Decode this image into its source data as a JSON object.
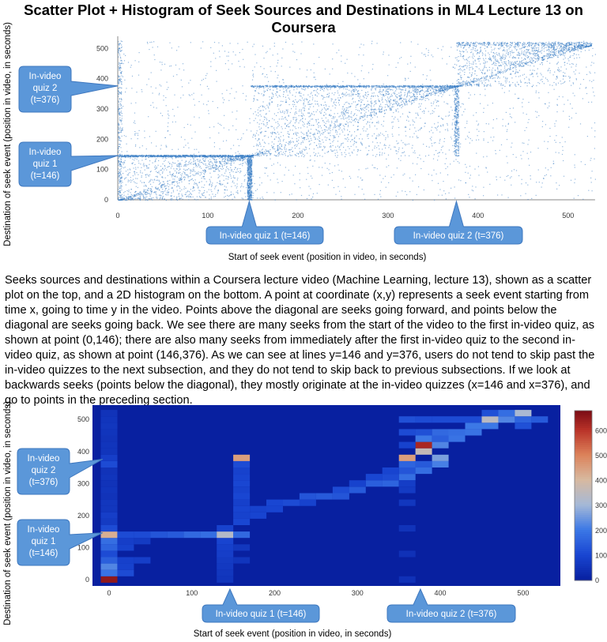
{
  "title": "Scatter Plot + Histogram of Seek Sources and Destinations in ML4 Lecture 13 on Coursera",
  "caption": "Seeks sources and destinations within a Coursera lecture video (Machine Learning, lecture 13), shown as a scatter plot on the top, and a 2D histogram on the bottom. A point at coordinate (x,y) represents a seek event starting from time x, going to time y in the video. Points above the diagonal are seeks going forward, and points below the diagonal are seeks going back. We see there are many seeks from the start of the video to the first in-video quiz, as shown at point (0,146); there are also many seeks from immediately after the first in-video quiz to the second in-video quiz, as shown at point (146,376). As we can see at lines y=146 and y=376, users do not tend to skip past the in-video quizzes to the next subsection, and they do not tend to skip back to previous subsections. If we look at backwards seeks (points below the diagonal), they mostly originate at the in-video quizzes (x=146 and x=376), and go to points in the preceding section.",
  "callouts": {
    "quiz1_left": [
      "In-video",
      "quiz 1",
      "(t=146)"
    ],
    "quiz2_left": [
      "In-video",
      "quiz 2",
      "(t=376)"
    ],
    "quiz1_bottom": "In-video quiz 1 (t=146)",
    "quiz2_bottom": "In-video quiz 2 (t=376)",
    "color": "#5b97d9"
  },
  "chart_data": [
    {
      "type": "scatter",
      "xlabel": "Start of seek event (position in video, in seconds)",
      "ylabel": "Destination of seek event (position in video, in seconds)",
      "xlim": [
        0,
        545
      ],
      "ylim": [
        0,
        545
      ],
      "xticks": [
        0,
        100,
        200,
        300,
        400,
        500
      ],
      "yticks": [
        0,
        100,
        200,
        300,
        400,
        500
      ],
      "point_color": "#3b7dc4",
      "reference_lines": {
        "quiz1": 146,
        "quiz2": 376
      }
    },
    {
      "type": "heatmap",
      "xlabel": "Start of seek event (position in video, in seconds)",
      "ylabel": "Destination of seek event (position in video, in seconds)",
      "xlim": [
        -20,
        545
      ],
      "ylim": [
        -20,
        545
      ],
      "xticks": [
        0,
        100,
        200,
        300,
        400,
        500
      ],
      "yticks": [
        0,
        100,
        200,
        300,
        400,
        500
      ],
      "bin_size": 20,
      "colorbar": {
        "min": 0,
        "max": 680,
        "ticks": [
          0,
          100,
          200,
          300,
          400,
          500,
          600
        ]
      },
      "cells": [
        [
          0,
          0,
          650
        ],
        [
          0,
          20,
          190
        ],
        [
          0,
          40,
          220
        ],
        [
          0,
          60,
          150
        ],
        [
          0,
          80,
          110
        ],
        [
          0,
          100,
          160
        ],
        [
          0,
          120,
          180
        ],
        [
          0,
          140,
          420
        ],
        [
          0,
          160,
          110
        ],
        [
          0,
          180,
          70
        ],
        [
          0,
          200,
          80
        ],
        [
          0,
          220,
          60
        ],
        [
          0,
          240,
          60
        ],
        [
          0,
          260,
          50
        ],
        [
          0,
          280,
          55
        ],
        [
          0,
          300,
          50
        ],
        [
          0,
          320,
          55
        ],
        [
          0,
          340,
          50
        ],
        [
          0,
          360,
          110
        ],
        [
          0,
          380,
          80
        ],
        [
          0,
          400,
          55
        ],
        [
          0,
          420,
          55
        ],
        [
          0,
          440,
          50
        ],
        [
          0,
          460,
          55
        ],
        [
          0,
          480,
          60
        ],
        [
          0,
          500,
          55
        ],
        [
          0,
          520,
          50
        ],
        [
          20,
          20,
          110
        ],
        [
          20,
          40,
          90
        ],
        [
          20,
          60,
          85
        ],
        [
          20,
          100,
          90
        ],
        [
          20,
          120,
          80
        ],
        [
          20,
          140,
          110
        ],
        [
          40,
          60,
          80
        ],
        [
          40,
          120,
          70
        ],
        [
          40,
          140,
          110
        ],
        [
          60,
          140,
          130
        ],
        [
          80,
          140,
          140
        ],
        [
          100,
          140,
          170
        ],
        [
          120,
          140,
          180
        ],
        [
          140,
          0,
          55
        ],
        [
          140,
          20,
          60
        ],
        [
          140,
          40,
          65
        ],
        [
          140,
          60,
          70
        ],
        [
          140,
          80,
          80
        ],
        [
          140,
          100,
          85
        ],
        [
          140,
          120,
          95
        ],
        [
          140,
          140,
          330
        ],
        [
          140,
          160,
          90
        ],
        [
          160,
          60,
          55
        ],
        [
          160,
          100,
          60
        ],
        [
          160,
          140,
          170
        ],
        [
          160,
          180,
          100
        ],
        [
          160,
          200,
          90
        ],
        [
          160,
          220,
          95
        ],
        [
          160,
          240,
          85
        ],
        [
          160,
          260,
          100
        ],
        [
          160,
          280,
          90
        ],
        [
          160,
          300,
          100
        ],
        [
          160,
          320,
          95
        ],
        [
          160,
          340,
          90
        ],
        [
          160,
          360,
          110
        ],
        [
          160,
          380,
          450
        ],
        [
          180,
          200,
          95
        ],
        [
          180,
          220,
          90
        ],
        [
          200,
          220,
          95
        ],
        [
          200,
          240,
          100
        ],
        [
          220,
          240,
          110
        ],
        [
          240,
          260,
          130
        ],
        [
          240,
          240,
          90
        ],
        [
          260,
          260,
          140
        ],
        [
          280,
          260,
          130
        ],
        [
          280,
          280,
          110
        ],
        [
          300,
          280,
          140
        ],
        [
          320,
          300,
          150
        ],
        [
          340,
          300,
          160
        ],
        [
          360,
          320,
          180
        ],
        [
          300,
          300,
          90
        ],
        [
          320,
          320,
          100
        ],
        [
          340,
          320,
          110
        ],
        [
          360,
          340,
          130
        ],
        [
          380,
          340,
          180
        ],
        [
          400,
          360,
          210
        ],
        [
          400,
          380,
          260
        ],
        [
          380,
          360,
          140
        ],
        [
          340,
          340,
          95
        ],
        [
          360,
          0,
          45
        ],
        [
          360,
          80,
          45
        ],
        [
          360,
          160,
          50
        ],
        [
          360,
          240,
          60
        ],
        [
          360,
          280,
          70
        ],
        [
          360,
          300,
          75
        ],
        [
          360,
          360,
          160
        ],
        [
          360,
          380,
          450
        ],
        [
          380,
          400,
          360
        ],
        [
          380,
          420,
          620
        ],
        [
          400,
          420,
          220
        ],
        [
          380,
          440,
          200
        ],
        [
          400,
          460,
          170
        ],
        [
          420,
          440,
          190
        ],
        [
          420,
          460,
          180
        ],
        [
          440,
          460,
          190
        ],
        [
          440,
          480,
          200
        ],
        [
          460,
          480,
          200
        ],
        [
          460,
          500,
          340
        ],
        [
          480,
          500,
          220
        ],
        [
          480,
          520,
          180
        ],
        [
          500,
          500,
          160
        ],
        [
          500,
          520,
          310
        ],
        [
          520,
          500,
          140
        ],
        [
          360,
          500,
          120
        ],
        [
          380,
          500,
          110
        ],
        [
          400,
          500,
          110
        ],
        [
          420,
          500,
          110
        ],
        [
          440,
          500,
          110
        ],
        [
          460,
          520,
          120
        ],
        [
          500,
          480,
          120
        ],
        [
          360,
          460,
          110
        ],
        [
          380,
          460,
          120
        ],
        [
          360,
          420,
          90
        ],
        [
          400,
          440,
          150
        ]
      ]
    }
  ]
}
